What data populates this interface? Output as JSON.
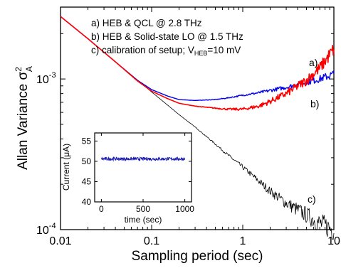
{
  "chart_data": [
    {
      "type": "line",
      "xlabel": "Sampling period (sec)",
      "ylabel": "Allan Variance σ",
      "ylabel_sup": "2",
      "ylabel_sub": "A",
      "xscale": "log",
      "yscale": "log",
      "xlim": [
        0.01,
        10
      ],
      "ylim": [
        0.0001,
        0.003
      ],
      "x_ticks": [
        {
          "value": 0.01,
          "label": "0.01"
        },
        {
          "value": 0.1,
          "label": "0.1"
        },
        {
          "value": 1,
          "label": "1"
        },
        {
          "value": 10,
          "label": "10"
        }
      ],
      "y_ticks": [
        {
          "value": 0.0001,
          "base": "10",
          "exp": "-4"
        },
        {
          "value": 0.001,
          "base": "10",
          "exp": "-3"
        }
      ],
      "legend_lines": [
        {
          "text": "a) HEB & QCL @ 2.8 THz"
        },
        {
          "text": "b) HEB & Solid-state LO @ 1.5 THz"
        },
        {
          "pre": "c) calibration of setup; V",
          "sub": "HEB",
          "post": "=10 mV"
        }
      ],
      "series": [
        {
          "name": "a)",
          "color": "#ff0000",
          "x": [
            0.01,
            0.02,
            0.04,
            0.07,
            0.1,
            0.15,
            0.2,
            0.3,
            0.5,
            0.7,
            1.0,
            1.5,
            2.0,
            3.0,
            5.0,
            7.0,
            10.0
          ],
          "y": [
            0.0026,
            0.00185,
            0.0013,
            0.00097,
            0.00083,
            0.00074,
            0.00069,
            0.00066,
            0.00064,
            0.00063,
            0.00063,
            0.00066,
            0.00071,
            0.0008,
            0.00098,
            0.00118,
            0.00158
          ]
        },
        {
          "name": "b)",
          "color": "#0000ee",
          "x": [
            0.01,
            0.02,
            0.04,
            0.07,
            0.1,
            0.15,
            0.2,
            0.3,
            0.5,
            0.7,
            1.0,
            1.5,
            2.0,
            3.0,
            5.0,
            7.0,
            10.0
          ],
          "y": [
            0.0026,
            0.00185,
            0.0013,
            0.00098,
            0.00085,
            0.00077,
            0.00073,
            0.00072,
            0.00073,
            0.00075,
            0.00078,
            0.00081,
            0.00084,
            0.00088,
            0.00095,
            0.001,
            0.00108
          ]
        },
        {
          "name": "c)",
          "color": "#000000",
          "x": [
            0.01,
            0.02,
            0.04,
            0.07,
            0.1,
            0.15,
            0.2,
            0.3,
            0.5,
            0.7,
            1.0,
            1.5,
            2.0,
            3.0,
            5.0,
            7.0,
            10.0
          ],
          "y": [
            0.0026,
            0.00185,
            0.0013,
            0.00098,
            0.00082,
            0.00067,
            0.00058,
            0.00048,
            0.00037,
            0.00031,
            0.00026,
            0.00021,
            0.00018,
            0.00015,
            0.000125,
            0.00011,
            0.0001
          ]
        }
      ]
    },
    {
      "type": "line",
      "xlabel": "time (sec)",
      "ylabel": "Current (μA)",
      "xlim": [
        -80,
        1080
      ],
      "ylim": [
        40,
        57
      ],
      "x_ticks": [
        0,
        500,
        1000
      ],
      "y_ticks": [
        40,
        45,
        50,
        55
      ],
      "series": [
        {
          "color": "#1a1ab4",
          "x": [
            0,
            1000
          ],
          "y": [
            50.6,
            50.6
          ],
          "noise_amplitude": 0.4
        }
      ]
    }
  ]
}
